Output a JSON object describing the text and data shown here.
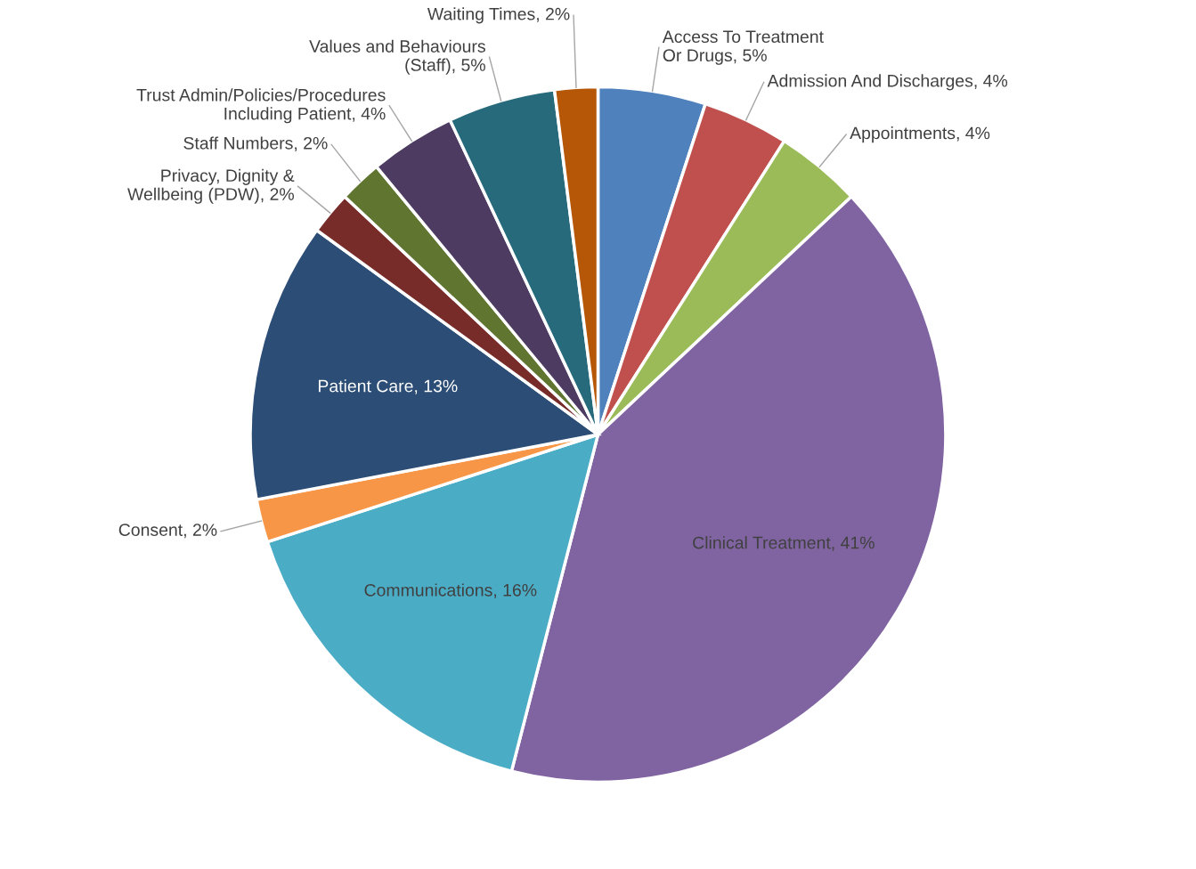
{
  "chart_data": {
    "type": "pie",
    "categories": [
      "Access To Treatment Or Drugs",
      "Admission And Discharges",
      "Appointments",
      "Clinical Treatment",
      "Communications",
      "Consent",
      "Patient Care",
      "Privacy, Dignity & Wellbeing (PDW)",
      "Staff Numbers",
      "Trust Admin/Policies/Procedures Including Patient",
      "Values and Behaviours (Staff)",
      "Waiting Times"
    ],
    "values": [
      5,
      4,
      4,
      41,
      16,
      2,
      13,
      2,
      2,
      4,
      5,
      2
    ],
    "colors": [
      "#4f81bd",
      "#c0504d",
      "#9bbb59",
      "#8064a2",
      "#4bacc6",
      "#f79646",
      "#2c4d75",
      "#772c2a",
      "#5f7530",
      "#4d3b62",
      "#276a7c",
      "#b65708"
    ],
    "value_labels": [
      "5%",
      "4%",
      "4%",
      "41%",
      "16%",
      "2%",
      "13%",
      "2%",
      "2%",
      "4%",
      "5%",
      "2%"
    ],
    "legend": false
  }
}
